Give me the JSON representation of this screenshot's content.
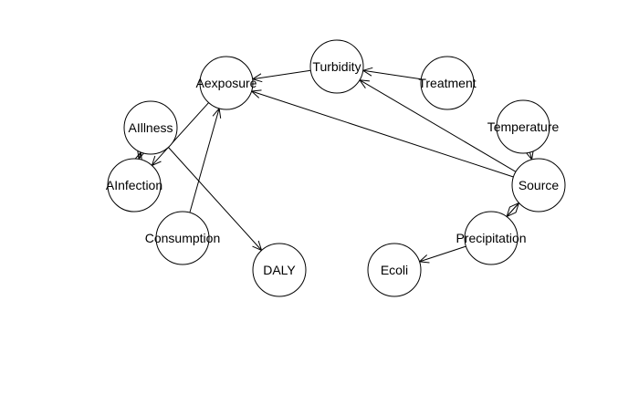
{
  "diagram": {
    "type": "directed-graph",
    "nodes": [
      {
        "id": "Aexposure",
        "label": "Aexposure"
      },
      {
        "id": "Turbidity",
        "label": "Turbidity"
      },
      {
        "id": "Treatment",
        "label": "Treatment"
      },
      {
        "id": "AIllness",
        "label": "AIllness"
      },
      {
        "id": "AInfection",
        "label": "AInfection"
      },
      {
        "id": "Consumption",
        "label": "Consumption"
      },
      {
        "id": "DALY",
        "label": "DALY"
      },
      {
        "id": "Temperature",
        "label": "Temperature"
      },
      {
        "id": "Source",
        "label": "Source"
      },
      {
        "id": "Precipitation",
        "label": "Precipitation"
      },
      {
        "id": "Ecoli",
        "label": "Ecoli"
      }
    ],
    "edges": [
      {
        "from": "Turbidity",
        "to": "Aexposure"
      },
      {
        "from": "Treatment",
        "to": "Turbidity"
      },
      {
        "from": "Source",
        "to": "Turbidity"
      },
      {
        "from": "Source",
        "to": "Aexposure"
      },
      {
        "from": "Aexposure",
        "to": "AInfection"
      },
      {
        "from": "Consumption",
        "to": "Aexposure"
      },
      {
        "from": "AIllness",
        "to": "AInfection"
      },
      {
        "from": "AInfection",
        "to": "AIllness"
      },
      {
        "from": "AIllness",
        "to": "DALY"
      },
      {
        "from": "Temperature",
        "to": "Source"
      },
      {
        "from": "Source",
        "to": "Precipitation"
      },
      {
        "from": "Precipitation",
        "to": "Source"
      },
      {
        "from": "Precipitation",
        "to": "Ecoli"
      }
    ]
  }
}
